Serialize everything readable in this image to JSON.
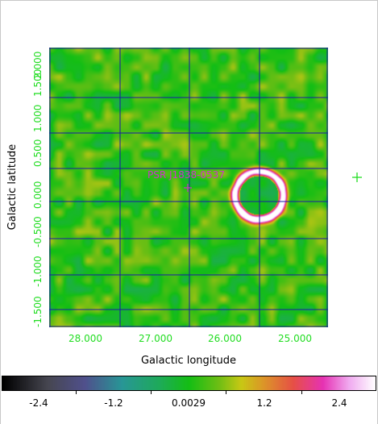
{
  "plot": {
    "x_axis_title": "Galactic longitude",
    "y_axis_title": "Galactic latitude",
    "x_tick_labels": [
      "28.000",
      "27.000",
      "26.000",
      "25.000"
    ],
    "y_tick_labels": [
      "-1.500",
      "-1.000",
      "-0.500",
      "0.000",
      "0.500",
      "1.000",
      "1.500",
      "2.000"
    ],
    "source_label": "PSR J1838-0537",
    "grid_color": "#1a1aa6",
    "source_color": "#cc33cc",
    "tick_color": "#22dd22",
    "side_marker_color": "#22dd22"
  },
  "colorbar": {
    "tick_labels": [
      "-2.4",
      "-1.2",
      "0.0029",
      "1.2",
      "2.4"
    ]
  }
}
